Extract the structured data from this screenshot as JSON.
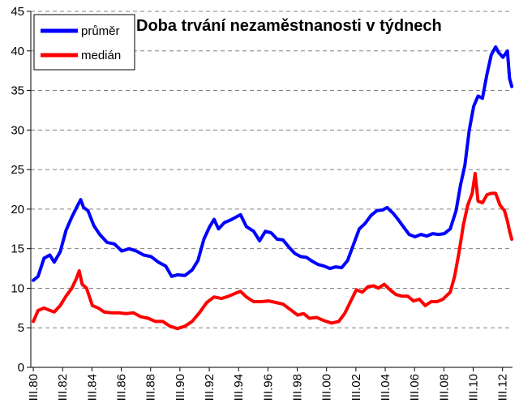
{
  "chart_data": {
    "type": "line",
    "title": "Doba trvání nezaměstnanosti v týdnech",
    "xlabel": "",
    "ylabel": "",
    "ylim": [
      0,
      45
    ],
    "yticks": [
      0,
      5,
      10,
      15,
      20,
      25,
      30,
      35,
      40,
      45
    ],
    "xlim": [
      1980.0,
      2012.85
    ],
    "xticks": [
      {
        "label": "III.80",
        "x": 1980.17
      },
      {
        "label": "III.82",
        "x": 1982.17
      },
      {
        "label": "III.84",
        "x": 1984.17
      },
      {
        "label": "III.86",
        "x": 1986.17
      },
      {
        "label": "III.88",
        "x": 1988.17
      },
      {
        "label": "III.90",
        "x": 1990.17
      },
      {
        "label": "III.92",
        "x": 1992.17
      },
      {
        "label": "III.94",
        "x": 1994.17
      },
      {
        "label": "III.96",
        "x": 1996.17
      },
      {
        "label": "III.98",
        "x": 1998.17
      },
      {
        "label": "III.00",
        "x": 2000.17
      },
      {
        "label": "III.02",
        "x": 2002.17
      },
      {
        "label": "III.04",
        "x": 2004.17
      },
      {
        "label": "III.06",
        "x": 2006.17
      },
      {
        "label": "III.08",
        "x": 2008.17
      },
      {
        "label": "III.10",
        "x": 2010.17
      },
      {
        "label": "III.12",
        "x": 2012.17
      }
    ],
    "grid": "horizontal dashed",
    "legend_position": "top-left",
    "series": [
      {
        "name": "průměr",
        "color": "#0000ff",
        "points": [
          [
            1980.17,
            11.0
          ],
          [
            1980.5,
            11.5
          ],
          [
            1980.9,
            13.8
          ],
          [
            1981.3,
            14.2
          ],
          [
            1981.6,
            13.3
          ],
          [
            1982.0,
            14.6
          ],
          [
            1982.4,
            17.3
          ],
          [
            1982.8,
            19.0
          ],
          [
            1983.2,
            20.5
          ],
          [
            1983.4,
            21.2
          ],
          [
            1983.6,
            20.2
          ],
          [
            1983.9,
            19.8
          ],
          [
            1984.3,
            17.9
          ],
          [
            1984.7,
            16.8
          ],
          [
            1985.2,
            15.8
          ],
          [
            1985.7,
            15.6
          ],
          [
            1986.2,
            14.7
          ],
          [
            1986.7,
            15.0
          ],
          [
            1987.2,
            14.7
          ],
          [
            1987.7,
            14.2
          ],
          [
            1988.2,
            14.0
          ],
          [
            1988.7,
            13.3
          ],
          [
            1989.2,
            12.8
          ],
          [
            1989.6,
            11.5
          ],
          [
            1990.0,
            11.7
          ],
          [
            1990.5,
            11.6
          ],
          [
            1991.0,
            12.3
          ],
          [
            1991.4,
            13.5
          ],
          [
            1991.8,
            16.2
          ],
          [
            1992.2,
            17.8
          ],
          [
            1992.5,
            18.7
          ],
          [
            1992.8,
            17.5
          ],
          [
            1993.2,
            18.3
          ],
          [
            1993.6,
            18.6
          ],
          [
            1994.0,
            19.0
          ],
          [
            1994.3,
            19.3
          ],
          [
            1994.7,
            17.8
          ],
          [
            1995.2,
            17.2
          ],
          [
            1995.6,
            16.0
          ],
          [
            1996.0,
            17.2
          ],
          [
            1996.4,
            17.0
          ],
          [
            1996.8,
            16.2
          ],
          [
            1997.2,
            16.1
          ],
          [
            1997.6,
            15.2
          ],
          [
            1998.0,
            14.4
          ],
          [
            1998.4,
            14.0
          ],
          [
            1998.8,
            13.9
          ],
          [
            1999.2,
            13.4
          ],
          [
            1999.6,
            13.0
          ],
          [
            2000.0,
            12.8
          ],
          [
            2000.4,
            12.5
          ],
          [
            2000.8,
            12.7
          ],
          [
            2001.2,
            12.6
          ],
          [
            2001.6,
            13.5
          ],
          [
            2002.0,
            15.5
          ],
          [
            2002.4,
            17.5
          ],
          [
            2002.8,
            18.2
          ],
          [
            2003.2,
            19.2
          ],
          [
            2003.6,
            19.8
          ],
          [
            2004.0,
            19.9
          ],
          [
            2004.3,
            20.2
          ],
          [
            2004.7,
            19.5
          ],
          [
            2005.0,
            18.8
          ],
          [
            2005.4,
            17.8
          ],
          [
            2005.8,
            16.8
          ],
          [
            2006.2,
            16.5
          ],
          [
            2006.6,
            16.8
          ],
          [
            2007.0,
            16.6
          ],
          [
            2007.4,
            16.9
          ],
          [
            2007.8,
            16.8
          ],
          [
            2008.2,
            16.9
          ],
          [
            2008.6,
            17.5
          ],
          [
            2009.0,
            19.8
          ],
          [
            2009.3,
            23.0
          ],
          [
            2009.6,
            25.5
          ],
          [
            2009.9,
            30.0
          ],
          [
            2010.2,
            33.0
          ],
          [
            2010.5,
            34.3
          ],
          [
            2010.8,
            34.0
          ],
          [
            2011.1,
            37.0
          ],
          [
            2011.4,
            39.5
          ],
          [
            2011.7,
            40.5
          ],
          [
            2011.9,
            39.8
          ],
          [
            2012.2,
            39.2
          ],
          [
            2012.5,
            40.0
          ],
          [
            2012.65,
            36.5
          ],
          [
            2012.8,
            35.5
          ]
        ]
      },
      {
        "name": "medián",
        "color": "#ff0000",
        "points": [
          [
            1980.17,
            5.8
          ],
          [
            1980.5,
            7.2
          ],
          [
            1980.9,
            7.5
          ],
          [
            1981.3,
            7.2
          ],
          [
            1981.6,
            7.0
          ],
          [
            1982.0,
            7.8
          ],
          [
            1982.4,
            9.0
          ],
          [
            1982.8,
            10.0
          ],
          [
            1983.1,
            11.2
          ],
          [
            1983.3,
            12.2
          ],
          [
            1983.5,
            10.5
          ],
          [
            1983.8,
            10.0
          ],
          [
            1984.2,
            7.8
          ],
          [
            1984.6,
            7.5
          ],
          [
            1985.0,
            7.0
          ],
          [
            1985.5,
            6.9
          ],
          [
            1986.0,
            6.9
          ],
          [
            1986.5,
            6.8
          ],
          [
            1987.0,
            6.9
          ],
          [
            1987.5,
            6.4
          ],
          [
            1988.0,
            6.2
          ],
          [
            1988.5,
            5.8
          ],
          [
            1989.0,
            5.8
          ],
          [
            1989.5,
            5.2
          ],
          [
            1990.0,
            4.9
          ],
          [
            1990.5,
            5.2
          ],
          [
            1991.0,
            5.8
          ],
          [
            1991.5,
            6.9
          ],
          [
            1992.0,
            8.2
          ],
          [
            1992.5,
            8.9
          ],
          [
            1993.0,
            8.7
          ],
          [
            1993.5,
            9.0
          ],
          [
            1994.0,
            9.4
          ],
          [
            1994.3,
            9.6
          ],
          [
            1994.7,
            8.9
          ],
          [
            1995.2,
            8.3
          ],
          [
            1995.7,
            8.3
          ],
          [
            1996.2,
            8.4
          ],
          [
            1996.7,
            8.2
          ],
          [
            1997.2,
            8.0
          ],
          [
            1997.7,
            7.3
          ],
          [
            1998.2,
            6.6
          ],
          [
            1998.6,
            6.8
          ],
          [
            1999.0,
            6.2
          ],
          [
            1999.5,
            6.3
          ],
          [
            2000.0,
            5.9
          ],
          [
            2000.5,
            5.6
          ],
          [
            2001.0,
            5.8
          ],
          [
            2001.4,
            6.8
          ],
          [
            2001.8,
            8.3
          ],
          [
            2002.2,
            9.8
          ],
          [
            2002.6,
            9.5
          ],
          [
            2003.0,
            10.2
          ],
          [
            2003.4,
            10.3
          ],
          [
            2003.7,
            10.0
          ],
          [
            2004.1,
            10.5
          ],
          [
            2004.5,
            9.8
          ],
          [
            2004.9,
            9.2
          ],
          [
            2005.3,
            9.0
          ],
          [
            2005.7,
            9.0
          ],
          [
            2006.1,
            8.4
          ],
          [
            2006.5,
            8.6
          ],
          [
            2006.9,
            7.8
          ],
          [
            2007.3,
            8.3
          ],
          [
            2007.7,
            8.3
          ],
          [
            2008.1,
            8.6
          ],
          [
            2008.6,
            9.5
          ],
          [
            2008.9,
            11.5
          ],
          [
            2009.2,
            14.5
          ],
          [
            2009.5,
            18.0
          ],
          [
            2009.8,
            20.5
          ],
          [
            2010.1,
            22.0
          ],
          [
            2010.3,
            24.5
          ],
          [
            2010.5,
            21.0
          ],
          [
            2010.8,
            20.8
          ],
          [
            2011.1,
            21.8
          ],
          [
            2011.4,
            22.0
          ],
          [
            2011.7,
            22.0
          ],
          [
            2012.0,
            20.5
          ],
          [
            2012.3,
            19.8
          ],
          [
            2012.5,
            18.5
          ],
          [
            2012.65,
            17.2
          ],
          [
            2012.8,
            16.2
          ]
        ]
      }
    ]
  }
}
